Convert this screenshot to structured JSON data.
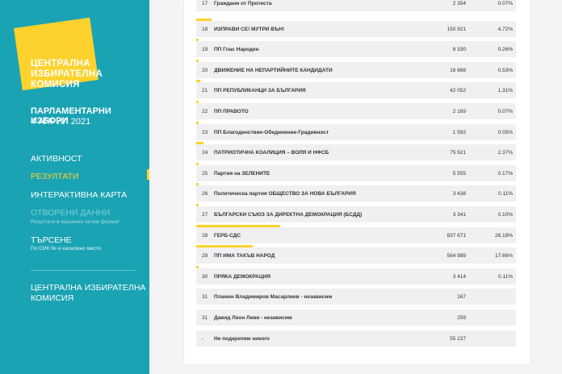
{
  "sidebar": {
    "logo_lines": [
      "ЦЕНТРАЛНА",
      "ИЗБИРАТЕЛНА",
      "КОМИСИЯ"
    ],
    "election_title": "ПАРЛАМЕНТАРНИ ИЗБОРИ",
    "election_date": "4 АПРИЛ 2021",
    "nav": {
      "activity": "АКТИВНОСТ",
      "results": "РЕЗУЛТАТИ",
      "map": "ИНТЕРАКТИВНА КАРТА",
      "open_data": "ОТВОРЕНИ ДАННИ",
      "open_data_sub": "Резултати в машинно четим формат",
      "search": "ТЪРСЕНЕ",
      "search_sub": "По СИК № и населено място"
    },
    "footer_lines": [
      "ЦЕНТРАЛНА ИЗБИРАТЕЛНА",
      "КОМИСИЯ"
    ]
  },
  "colors": {
    "sidebar": "#1aa3b3",
    "accent": "#fdd22c"
  },
  "results": [
    {
      "num": "17",
      "party": "Граждани от Протеста",
      "votes": "2 354",
      "pct": "0.07%",
      "share": 0.0007
    },
    {
      "num": "18",
      "party": "ИЗПРАВИ СЕ! МУТРИ ВЪН!",
      "votes": "150 921",
      "pct": "4.72%",
      "share": 0.0472
    },
    {
      "num": "19",
      "party": "ПП Глас Народен",
      "votes": "8 330",
      "pct": "0.26%",
      "share": 0.0026
    },
    {
      "num": "20",
      "party": "ДВИЖЕНИЕ НА НЕПАРТИЙНИТЕ КАНДИДАТИ",
      "votes": "16 868",
      "pct": "0.53%",
      "share": 0.0053
    },
    {
      "num": "21",
      "party": "ПП РЕПУБЛИКАНЦИ ЗА БЪЛГАРИЯ",
      "votes": "42 052",
      "pct": "1.31%",
      "share": 0.0131
    },
    {
      "num": "22",
      "party": "ПП ПРАВОТО",
      "votes": "2 169",
      "pct": "0.07%",
      "share": 0.0007
    },
    {
      "num": "23",
      "party": "ПП Благоденствие-Обединение-Градивност",
      "votes": "1 592",
      "pct": "0.05%",
      "share": 0.0005
    },
    {
      "num": "24",
      "party": "ПАТРИОТИЧНА КОАЛИЦИЯ – ВОЛЯ И НФСБ",
      "votes": "75 921",
      "pct": "2.37%",
      "share": 0.0237
    },
    {
      "num": "25",
      "party": "Партия на ЗЕЛЕНИТЕ",
      "votes": "5 555",
      "pct": "0.17%",
      "share": 0.0017
    },
    {
      "num": "26",
      "party": "Политическа партия ОБЩЕСТВО ЗА НОВА БЪЛГАРИЯ",
      "votes": "3 438",
      "pct": "0.11%",
      "share": 0.0011
    },
    {
      "num": "27",
      "party": "БЪЛГАРСКИ СЪЮЗ ЗА ДИРЕКТНА ДЕМОКРАЦИЯ (БСДД)",
      "votes": "3 341",
      "pct": "0.10%",
      "share": 0.001
    },
    {
      "num": "28",
      "party": "ГЕРБ-СДС",
      "votes": "837 671",
      "pct": "26.18%",
      "share": 0.2618
    },
    {
      "num": "29",
      "party": "ПП ИМА ТАКЪВ НАРОД",
      "votes": "564 989",
      "pct": "17.66%",
      "share": 0.1766
    },
    {
      "num": "30",
      "party": "ПРЯКА ДЕМОКРАЦИЯ",
      "votes": "3 414",
      "pct": "0.11%",
      "share": 0.0011
    },
    {
      "num": "31",
      "party": "Пламен Владимиров Масарлиев - независим",
      "votes": "167",
      "pct": "",
      "share": 0
    },
    {
      "num": "31",
      "party": "Давид Леон Леви - независим",
      "votes": "259",
      "pct": "",
      "share": 0
    },
    {
      "num": "-",
      "party": "Не подкрепям никого",
      "votes": "55 237",
      "pct": "",
      "share": 0
    }
  ]
}
